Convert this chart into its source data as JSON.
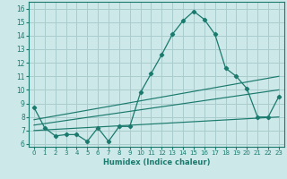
{
  "main_x": [
    0,
    1,
    2,
    3,
    4,
    5,
    6,
    7,
    8,
    9,
    10,
    11,
    12,
    13,
    14,
    15,
    16,
    17,
    18,
    19,
    20,
    21,
    22,
    23
  ],
  "main_y": [
    8.7,
    7.2,
    6.6,
    6.7,
    6.7,
    6.2,
    7.2,
    6.2,
    7.3,
    7.3,
    9.8,
    11.2,
    12.6,
    14.1,
    15.1,
    15.8,
    15.2,
    14.1,
    11.6,
    11.0,
    10.1,
    8.0,
    8.0,
    9.5
  ],
  "upper_line_x": [
    0,
    23
  ],
  "upper_line_y": [
    7.8,
    11.0
  ],
  "lower_line_x": [
    0,
    23
  ],
  "lower_line_y": [
    7.0,
    8.0
  ],
  "mid_line_x": [
    0,
    23
  ],
  "mid_line_y": [
    7.4,
    10.0
  ],
  "color": "#1a7a6e",
  "bg_color": "#cde8e8",
  "grid_color": "#aacccc",
  "xlabel": "Humidex (Indice chaleur)",
  "xlim": [
    -0.5,
    23.5
  ],
  "ylim": [
    5.8,
    16.5
  ],
  "yticks": [
    6,
    7,
    8,
    9,
    10,
    11,
    12,
    13,
    14,
    15,
    16
  ],
  "xticks": [
    0,
    1,
    2,
    3,
    4,
    5,
    6,
    7,
    8,
    9,
    10,
    11,
    12,
    13,
    14,
    15,
    16,
    17,
    18,
    19,
    20,
    21,
    22,
    23
  ]
}
